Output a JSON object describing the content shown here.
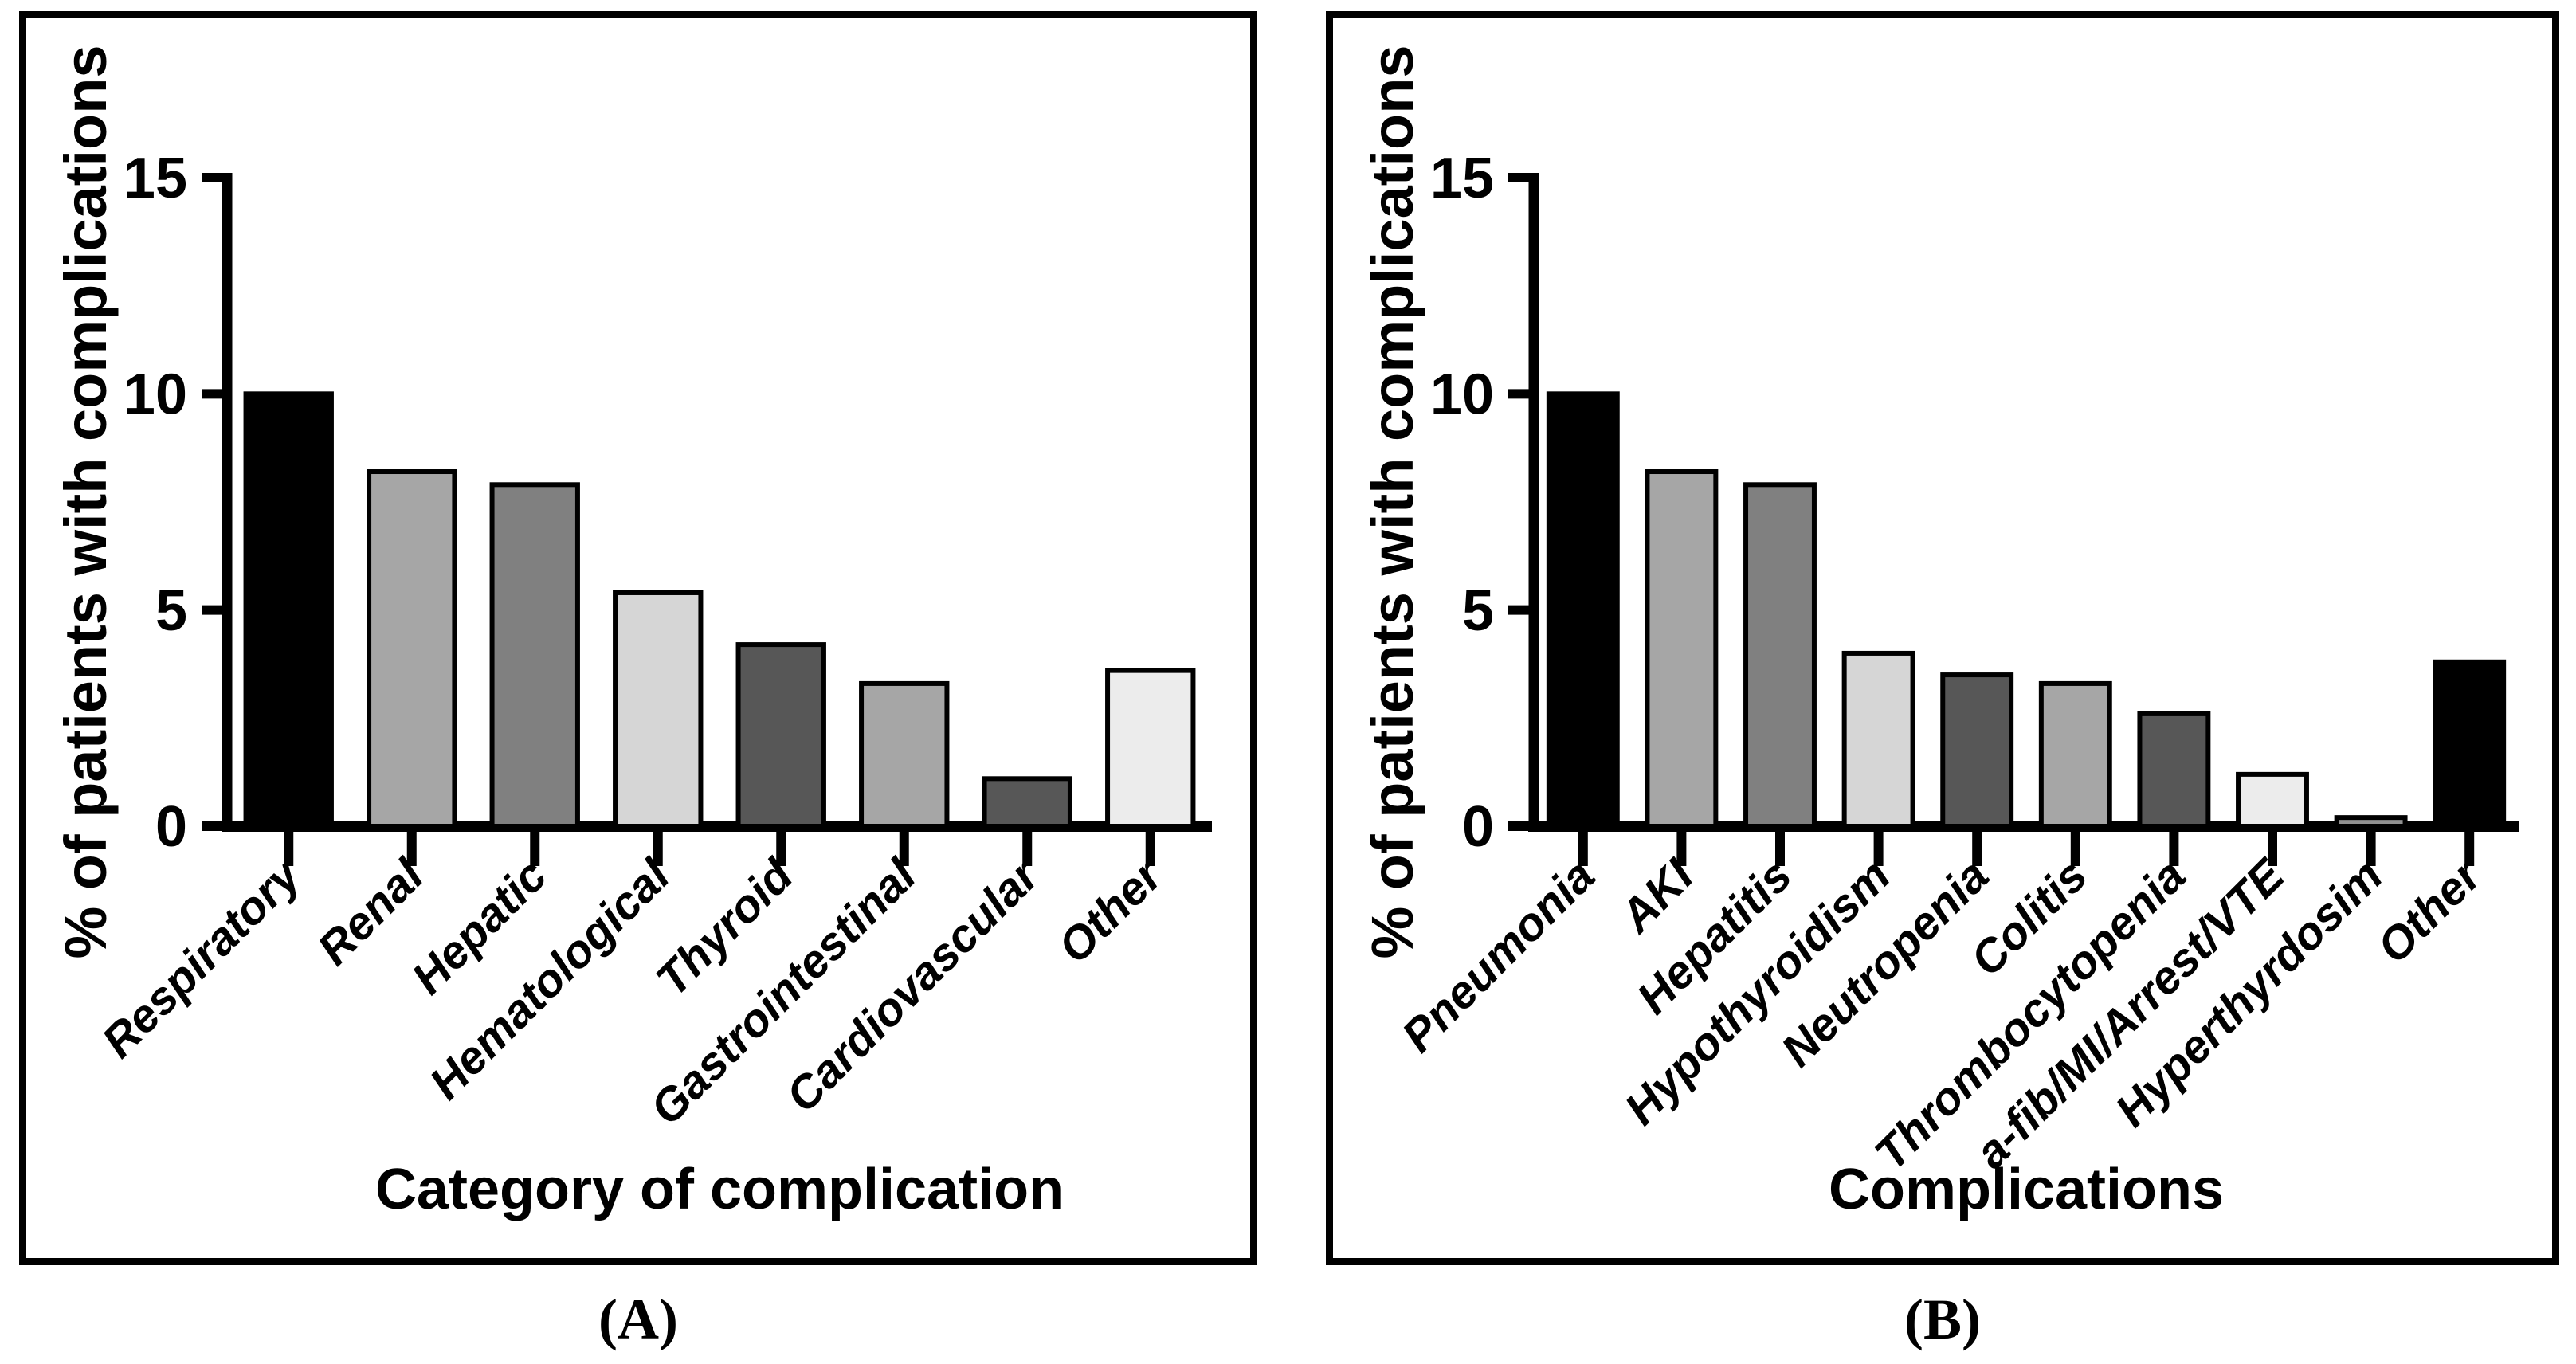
{
  "figure": {
    "background": "#ffffff",
    "panel_border_color": "#000000",
    "text_color": "#000000"
  },
  "chart_data": [
    {
      "type": "bar",
      "panel_label": "(A)",
      "title": "",
      "xlabel": "Category of complication",
      "ylabel": "% of patients with complications",
      "ylim": [
        0,
        15
      ],
      "yticks": [
        0,
        5,
        10,
        15
      ],
      "grid": false,
      "legend_position": "none",
      "categories": [
        "Respiratory",
        "Renal",
        "Hepatic",
        "Hematological",
        "Thyroid",
        "Gastrointestinal",
        "Cardiovascular",
        "Other"
      ],
      "values": [
        10.0,
        8.2,
        7.9,
        5.4,
        4.2,
        3.3,
        1.1,
        3.6
      ],
      "bar_colors": [
        "#000000",
        "#a6a6a6",
        "#808080",
        "#d6d6d6",
        "#575757",
        "#a6a6a6",
        "#575757",
        "#ececec"
      ],
      "bar_border_color": "#000000",
      "axis_color": "#000000"
    },
    {
      "type": "bar",
      "panel_label": "(B)",
      "title": "",
      "xlabel": "Complications",
      "ylabel": "% of patients with complications",
      "ylim": [
        0,
        15
      ],
      "yticks": [
        0,
        5,
        10,
        15
      ],
      "grid": false,
      "legend_position": "none",
      "categories": [
        "Pneumonia",
        "AKI",
        "Hepatitis",
        "Hypothyroidism",
        "Neutropenia",
        "Colitis",
        "Thrombocytopenia",
        "a-fib/MI/Arrest/VTE",
        "Hyperthyrdosim",
        "Other"
      ],
      "values": [
        10.0,
        8.2,
        7.9,
        4.0,
        3.5,
        3.3,
        2.6,
        1.2,
        0.2,
        3.8
      ],
      "bar_colors": [
        "#000000",
        "#a6a6a6",
        "#808080",
        "#d6d6d6",
        "#575757",
        "#a6a6a6",
        "#575757",
        "#ececec",
        "#909090",
        "#000000"
      ],
      "bar_border_color": "#000000",
      "axis_color": "#000000"
    }
  ]
}
